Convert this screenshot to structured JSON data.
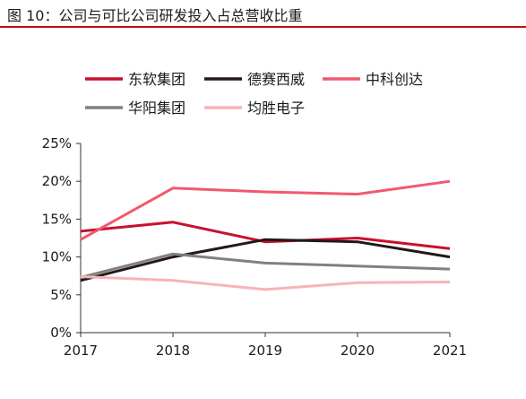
{
  "figure": {
    "label": "图 10：公司与可比公司研发投入占总营收比重"
  },
  "chart_data": {
    "type": "line",
    "title": "",
    "xlabel": "",
    "ylabel": "",
    "x": [
      "2017",
      "2018",
      "2019",
      "2020",
      "2021"
    ],
    "y_ticks": [
      "0%",
      "5%",
      "10%",
      "15%",
      "20%",
      "25%"
    ],
    "ylim": [
      0,
      25
    ],
    "grid": false,
    "legend_position": "top",
    "series": [
      {
        "name": "东软集团",
        "color": "#c8102e",
        "values": [
          13.4,
          14.6,
          12.0,
          12.5,
          11.1
        ]
      },
      {
        "name": "德赛西威",
        "color": "#231815",
        "values": [
          6.9,
          10.0,
          12.3,
          12.0,
          10.0
        ]
      },
      {
        "name": "中科创达",
        "color": "#f0596e",
        "values": [
          12.3,
          19.1,
          18.6,
          18.3,
          20.0
        ]
      },
      {
        "name": "华阳集团",
        "color": "#808080",
        "values": [
          7.3,
          10.4,
          9.2,
          8.8,
          8.4
        ]
      },
      {
        "name": "均胜电子",
        "color": "#f7b3b8",
        "values": [
          7.4,
          6.9,
          5.7,
          6.6,
          6.7
        ]
      }
    ]
  }
}
